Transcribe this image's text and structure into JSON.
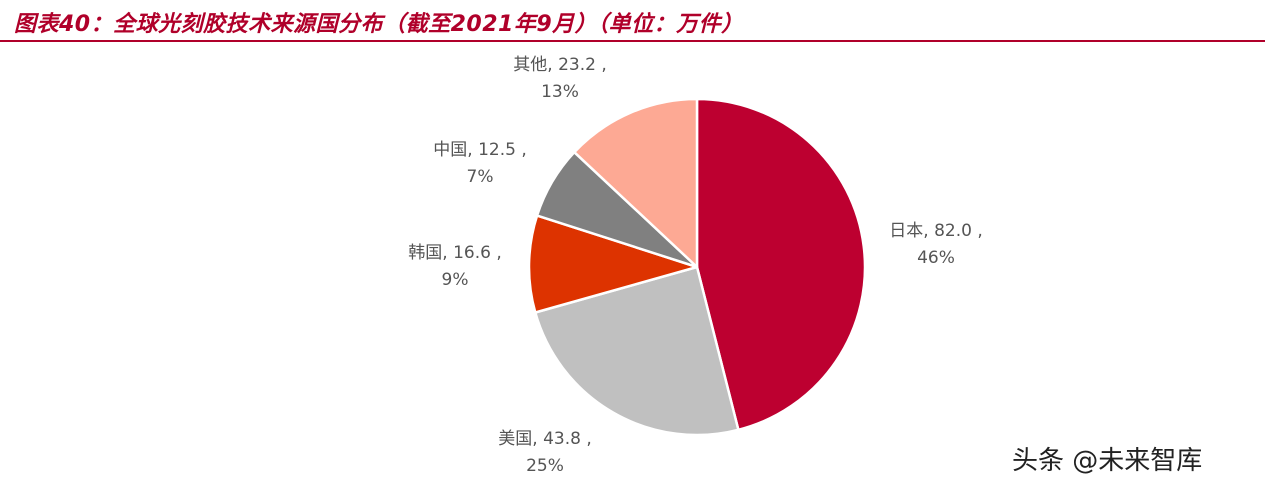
{
  "title": "图表40：全球光刻胶技术来源国分布（截至2021年9月）（单位：万件）",
  "watermark": "头条 @未来智库",
  "colors": {
    "title": "#b0002a"
  },
  "chart_data": {
    "type": "pie",
    "title": "图表40：全球光刻胶技术来源国分布（截至2021年9月）（单位：万件）",
    "unit": "万件",
    "start": "12 o'clock, clockwise",
    "legend": "none",
    "slices": [
      {
        "name": "日本",
        "value": 82.0,
        "percent": "46%",
        "color": "#bd0030",
        "line1": "日本, 82.0 ,",
        "line2": "46%"
      },
      {
        "name": "美国",
        "value": 43.8,
        "percent": "25%",
        "color": "#c0c0c0",
        "line1": "美国, 43.8 ,",
        "line2": "25%"
      },
      {
        "name": "韩国",
        "value": 16.6,
        "percent": "9%",
        "color": "#dd3300",
        "line1": "韩国, 16.6 ,",
        "line2": "9%"
      },
      {
        "name": "中国",
        "value": 12.5,
        "percent": "7%",
        "color": "#808080",
        "line1": "中国, 12.5 ,",
        "line2": "7%"
      },
      {
        "name": "其他",
        "value": 23.2,
        "percent": "13%",
        "color": "#fda994",
        "line1": "其他, 23.2 ,",
        "line2": "13%"
      }
    ]
  }
}
